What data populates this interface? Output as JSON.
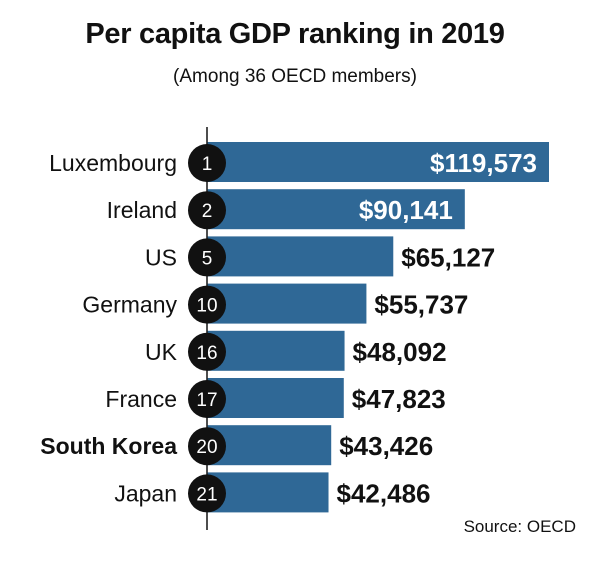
{
  "title": "Per capita GDP ranking in 2019",
  "subtitle": "(Among 36 OECD members)",
  "source": "Source: OECD",
  "colors": {
    "bar": "#2f6896",
    "rank_circle": "#111111",
    "highlight_country": "South Korea"
  },
  "chart_data": {
    "type": "bar",
    "orientation": "horizontal",
    "categories": [
      "Luxembourg",
      "Ireland",
      "US",
      "Germany",
      "UK",
      "France",
      "South Korea",
      "Japan"
    ],
    "ranks": [
      "1",
      "2",
      "5",
      "10",
      "16",
      "17",
      "20",
      "21"
    ],
    "values": [
      119573,
      90141,
      65127,
      55737,
      48092,
      47823,
      43426,
      42486
    ],
    "value_labels": [
      "$119,573",
      "$90,141",
      "$65,127",
      "$55,737",
      "$48,092",
      "$47,823",
      "$43,426",
      "$42,486"
    ],
    "title": "Per capita GDP ranking in 2019",
    "grid": false,
    "legend": "none"
  }
}
